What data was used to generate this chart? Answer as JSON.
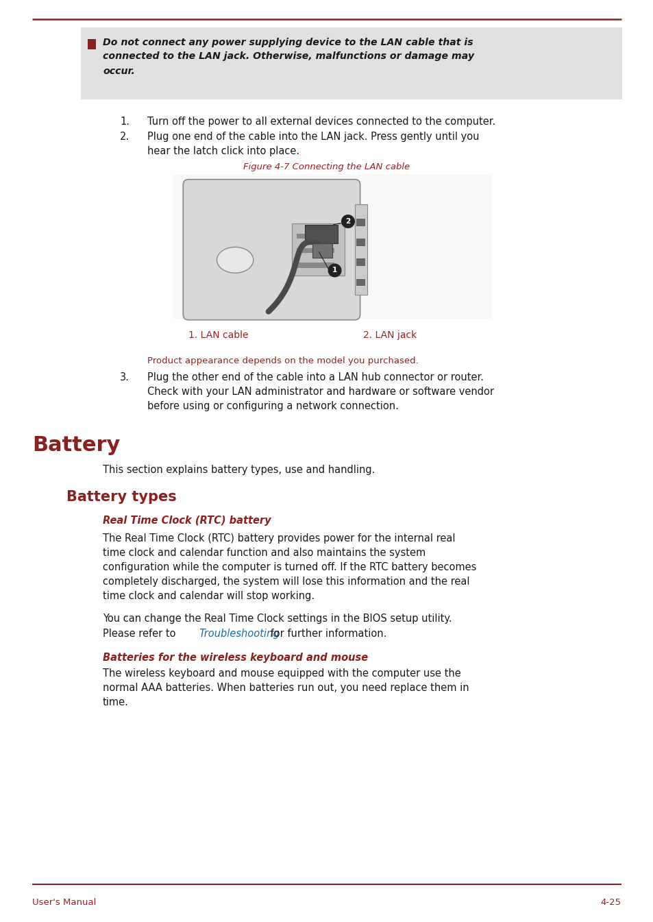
{
  "page_bg": "#ffffff",
  "dark_red": "#8B2020",
  "crimson": "#9B2020",
  "link_blue": "#1a6ca8",
  "black": "#1a1a1a",
  "gray_bg": "#E0E0E0",
  "footer_text_left": "User's Manual",
  "footer_text_right": "4-25",
  "warning_line1": "Do not connect any power supplying device to the LAN cable that is",
  "warning_line2": "connected to the LAN jack. Otherwise, malfunctions or damage may",
  "warning_line3": "occur.",
  "step1": "Turn off the power to all external devices connected to the computer.",
  "step2_line1": "Plug one end of the cable into the LAN jack. Press gently until you",
  "step2_line2": "hear the latch click into place.",
  "figure_caption": "Figure 4-7 Connecting the LAN cable",
  "lan_label1": "1. LAN cable",
  "lan_label2": "2. LAN jack",
  "product_note": "Product appearance depends on the model you purchased.",
  "step3_line1": "Plug the other end of the cable into a LAN hub connector or router.",
  "step3_line2": "Check with your LAN administrator and hardware or software vendor",
  "step3_line3": "before using or configuring a network connection.",
  "battery_heading": "Battery",
  "battery_intro": "This section explains battery types, use and handling.",
  "battery_types_heading": "Battery types",
  "rtc_heading": "Real Time Clock (RTC) battery",
  "rtc_p1_l1": "The Real Time Clock (RTC) battery provides power for the internal real",
  "rtc_p1_l2": "time clock and calendar function and also maintains the system",
  "rtc_p1_l3": "configuration while the computer is turned off. If the RTC battery becomes",
  "rtc_p1_l4": "completely discharged, the system will lose this information and the real",
  "rtc_p1_l5": "time clock and calendar will stop working.",
  "rtc_p2_l1": "You can change the Real Time Clock settings in the BIOS setup utility.",
  "rtc_p2_pre": "Please refer to ",
  "rtc_p2_link": "Troubleshooting",
  "rtc_p2_post": " for further information.",
  "wireless_heading": "Batteries for the wireless keyboard and mouse",
  "wire_l1": "The wireless keyboard and mouse equipped with the computer use the",
  "wire_l2": "normal AAA batteries. When batteries run out, you need replace them in",
  "wire_l3": "time."
}
